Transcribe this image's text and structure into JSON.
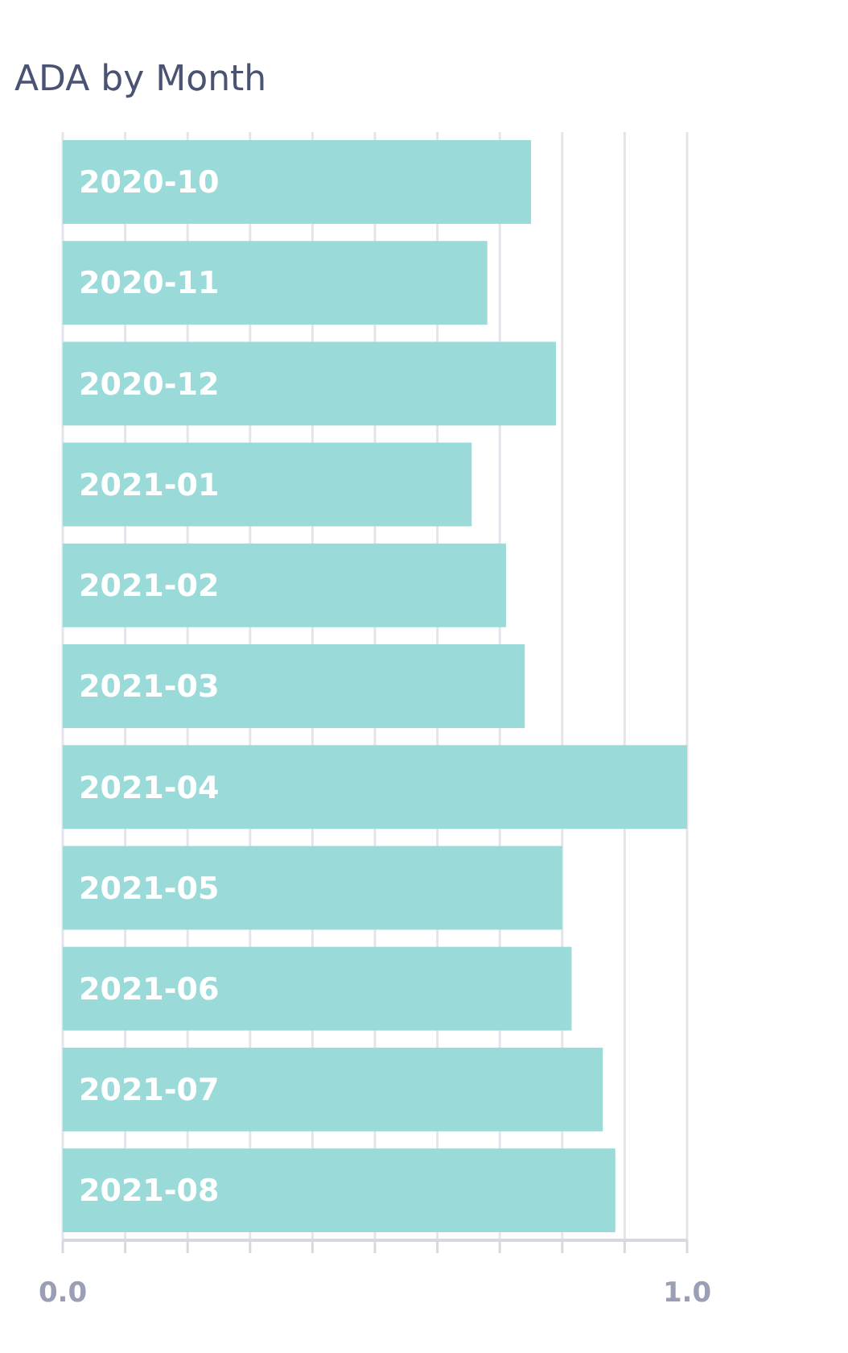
{
  "chart_data": {
    "type": "bar",
    "title": "ADA by Month",
    "orientation": "horizontal",
    "categories": [
      "2020-10",
      "2020-11",
      "2020-12",
      "2021-01",
      "2021-02",
      "2021-03",
      "2021-04",
      "2021-05",
      "2021-06",
      "2021-07",
      "2021-08"
    ],
    "values": [
      0.75,
      0.68,
      0.79,
      0.655,
      0.71,
      0.74,
      1.0,
      0.8,
      0.815,
      0.865,
      0.885
    ],
    "color": "#9adad9",
    "xlim": [
      0,
      1
    ],
    "xticks": [
      {
        "value": 0,
        "label": "0.0"
      },
      {
        "value": 0.1,
        "label": null
      },
      {
        "value": 0.2,
        "label": null
      },
      {
        "value": 0.3,
        "label": null
      },
      {
        "value": 0.4,
        "label": null
      },
      {
        "value": 0.5,
        "label": null
      },
      {
        "value": 0.6,
        "label": null
      },
      {
        "value": 0.7,
        "label": null
      },
      {
        "value": 0.8,
        "label": null
      },
      {
        "value": 0.9,
        "label": null
      },
      {
        "value": 1,
        "label": "1.0"
      }
    ],
    "grid": "x"
  }
}
